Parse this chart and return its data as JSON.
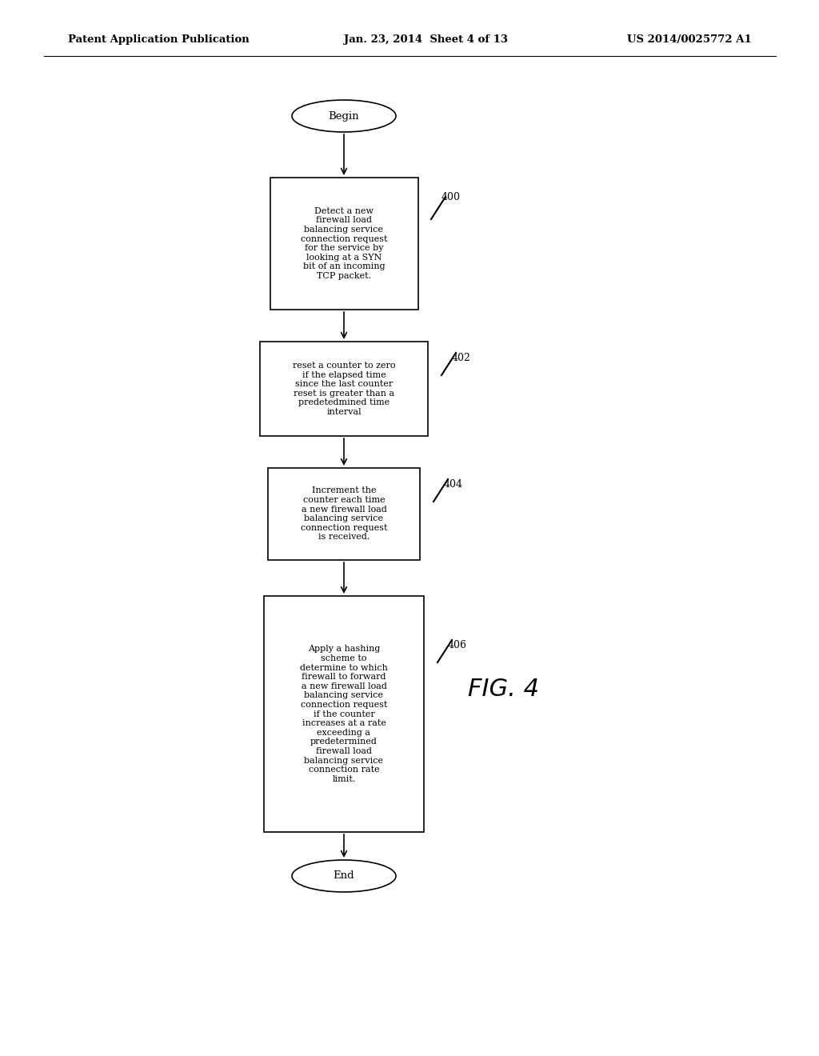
{
  "bg_color": "#ffffff",
  "header_left": "Patent Application Publication",
  "header_mid": "Jan. 23, 2014  Sheet 4 of 13",
  "header_right": "US 2014/0025772 A1",
  "begin_label": "Begin",
  "end_label": "End",
  "box1_text": "Detect a new\nfirewall load\nbalancing service\nconnection request\nfor the service by\nlooking at a SYN\nbit of an incoming\nTCP packet.",
  "box1_num": "400",
  "box2_text": "reset a counter to zero\nif the elapsed time\nsince the last counter\nreset is greater than a\npredetedmined time\ninterval",
  "box2_num": "402",
  "box3_text": "Increment the\ncounter each time\na new firewall load\nbalancing service\nconnection request\nis received.",
  "box3_num": "404",
  "box4_text": "Apply a hashing\nscheme to\ndetermine to which\nfirewall to forward\na new firewall load\nbalancing service\nconnection request\nif the counter\nincreases at a rate\nexceeding a\npredetermined\nfirewall load\nbalancing service\nconnection rate\nlimit.",
  "box4_num": "406",
  "fig_label": "FIG. 4"
}
